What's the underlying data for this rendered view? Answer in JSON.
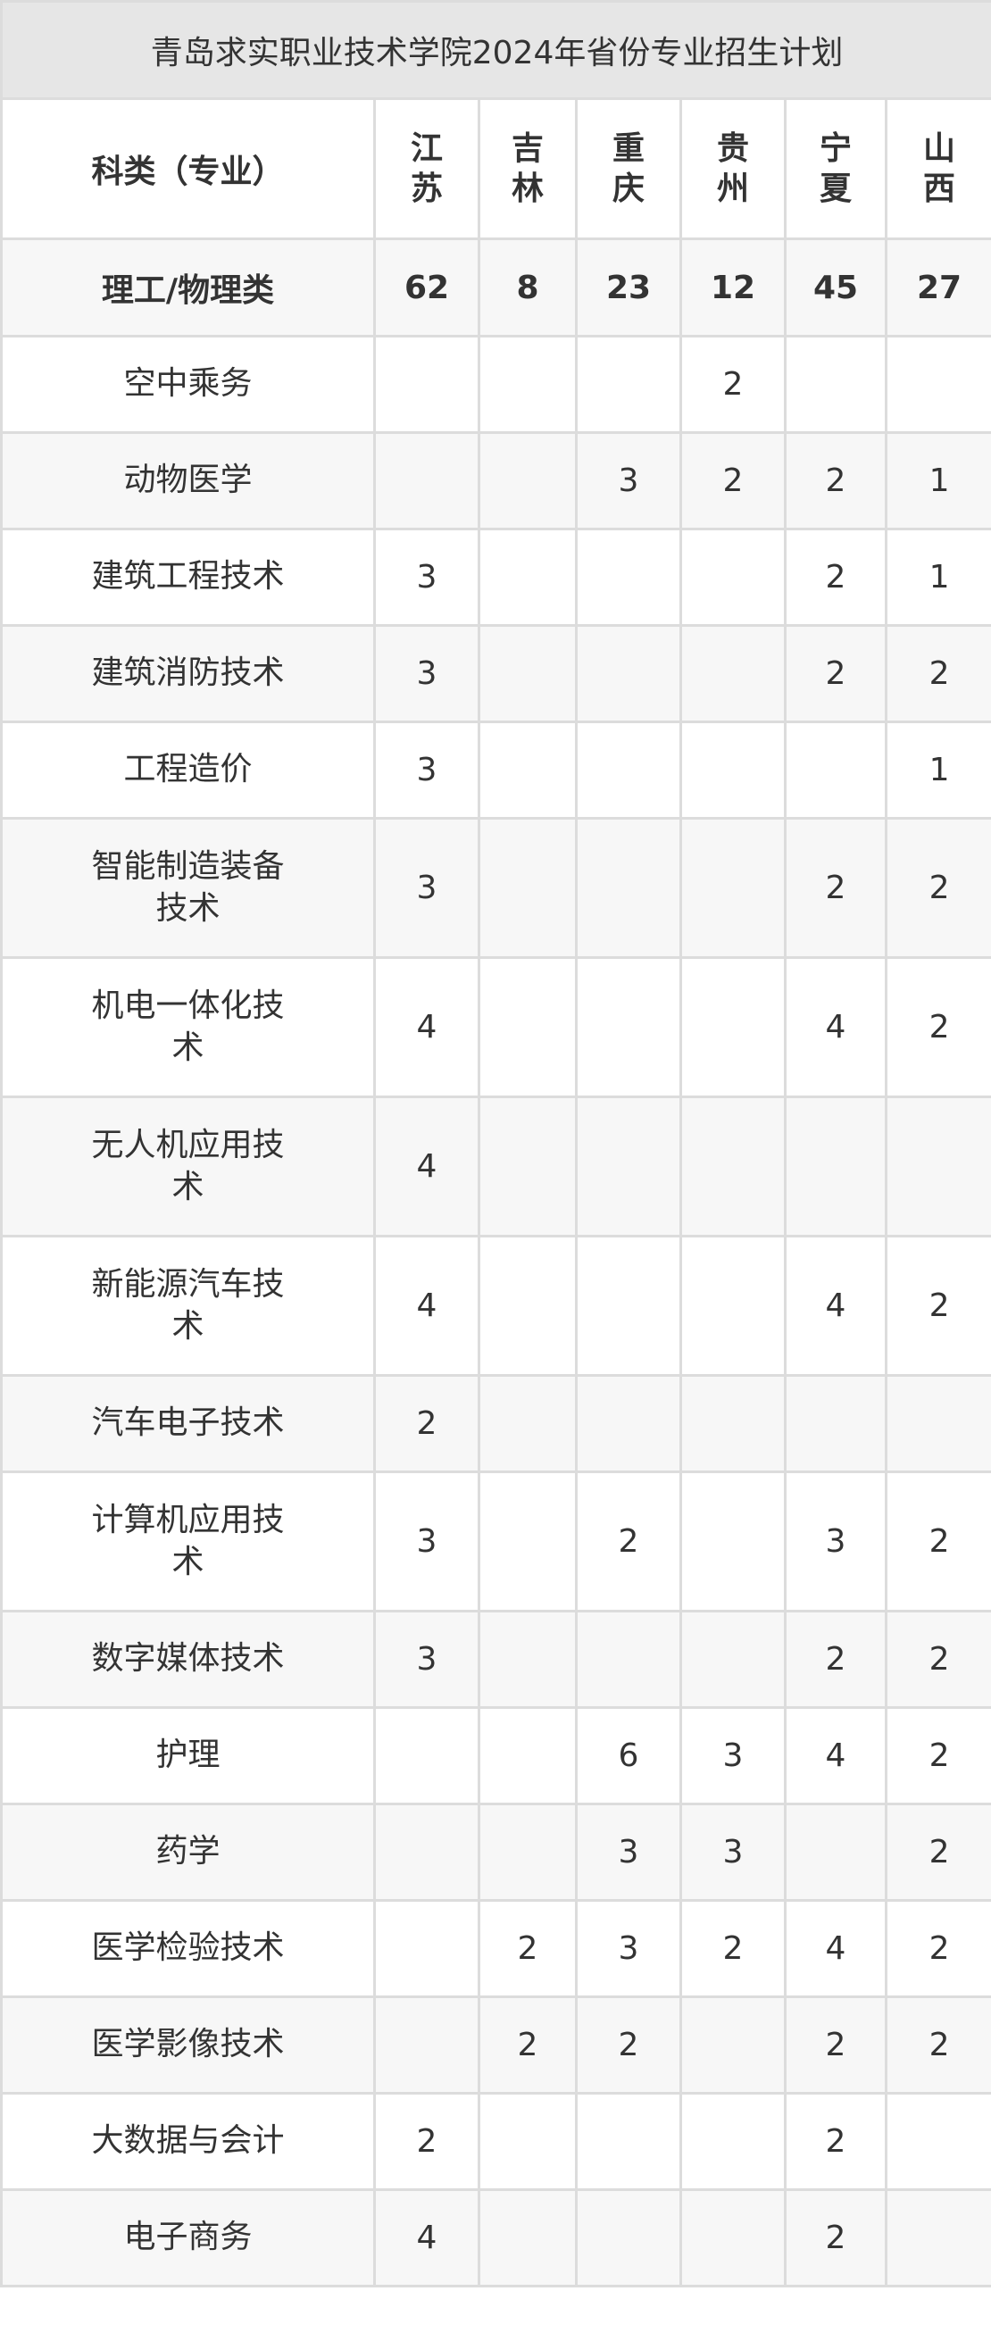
{
  "title": "青岛求实职业技术学院2024年省份专业招生计划",
  "header": {
    "category_label": "科类（专业）",
    "provinces": [
      "江苏",
      "吉林",
      "重庆",
      "贵州",
      "宁夏",
      "山西"
    ]
  },
  "summary": {
    "label": "理工/物理类",
    "values": [
      "62",
      "8",
      "23",
      "12",
      "45",
      "27"
    ]
  },
  "rows": [
    {
      "name": "空中乘务",
      "values": [
        "",
        "",
        "",
        "2",
        "",
        ""
      ]
    },
    {
      "name": "动物医学",
      "values": [
        "",
        "",
        "3",
        "2",
        "2",
        "1"
      ]
    },
    {
      "name": "建筑工程技术",
      "values": [
        "3",
        "",
        "",
        "",
        "2",
        "1"
      ]
    },
    {
      "name": "建筑消防技术",
      "values": [
        "3",
        "",
        "",
        "",
        "2",
        "2"
      ]
    },
    {
      "name": "工程造价",
      "values": [
        "3",
        "",
        "",
        "",
        "",
        "1"
      ]
    },
    {
      "name": "智能制造装备技术",
      "values": [
        "3",
        "",
        "",
        "",
        "2",
        "2"
      ]
    },
    {
      "name": "机电一体化技术",
      "values": [
        "4",
        "",
        "",
        "",
        "4",
        "2"
      ]
    },
    {
      "name": "无人机应用技术",
      "values": [
        "4",
        "",
        "",
        "",
        "",
        ""
      ]
    },
    {
      "name": "新能源汽车技术",
      "values": [
        "4",
        "",
        "",
        "",
        "4",
        "2"
      ]
    },
    {
      "name": "汽车电子技术",
      "values": [
        "2",
        "",
        "",
        "",
        "",
        ""
      ]
    },
    {
      "name": "计算机应用技术",
      "values": [
        "3",
        "",
        "2",
        "",
        "3",
        "2"
      ]
    },
    {
      "name": "数字媒体技术",
      "values": [
        "3",
        "",
        "",
        "",
        "2",
        "2"
      ]
    },
    {
      "name": "护理",
      "values": [
        "",
        "",
        "6",
        "3",
        "4",
        "2"
      ]
    },
    {
      "name": "药学",
      "values": [
        "",
        "",
        "3",
        "3",
        "",
        "2"
      ]
    },
    {
      "name": "医学检验技术",
      "values": [
        "",
        "2",
        "3",
        "2",
        "4",
        "2"
      ]
    },
    {
      "name": "医学影像技术",
      "values": [
        "",
        "2",
        "2",
        "",
        "2",
        "2"
      ]
    },
    {
      "name": "大数据与会计",
      "values": [
        "2",
        "",
        "",
        "",
        "2",
        ""
      ]
    },
    {
      "name": "电子商务",
      "values": [
        "4",
        "",
        "",
        "",
        "2",
        ""
      ]
    }
  ]
}
